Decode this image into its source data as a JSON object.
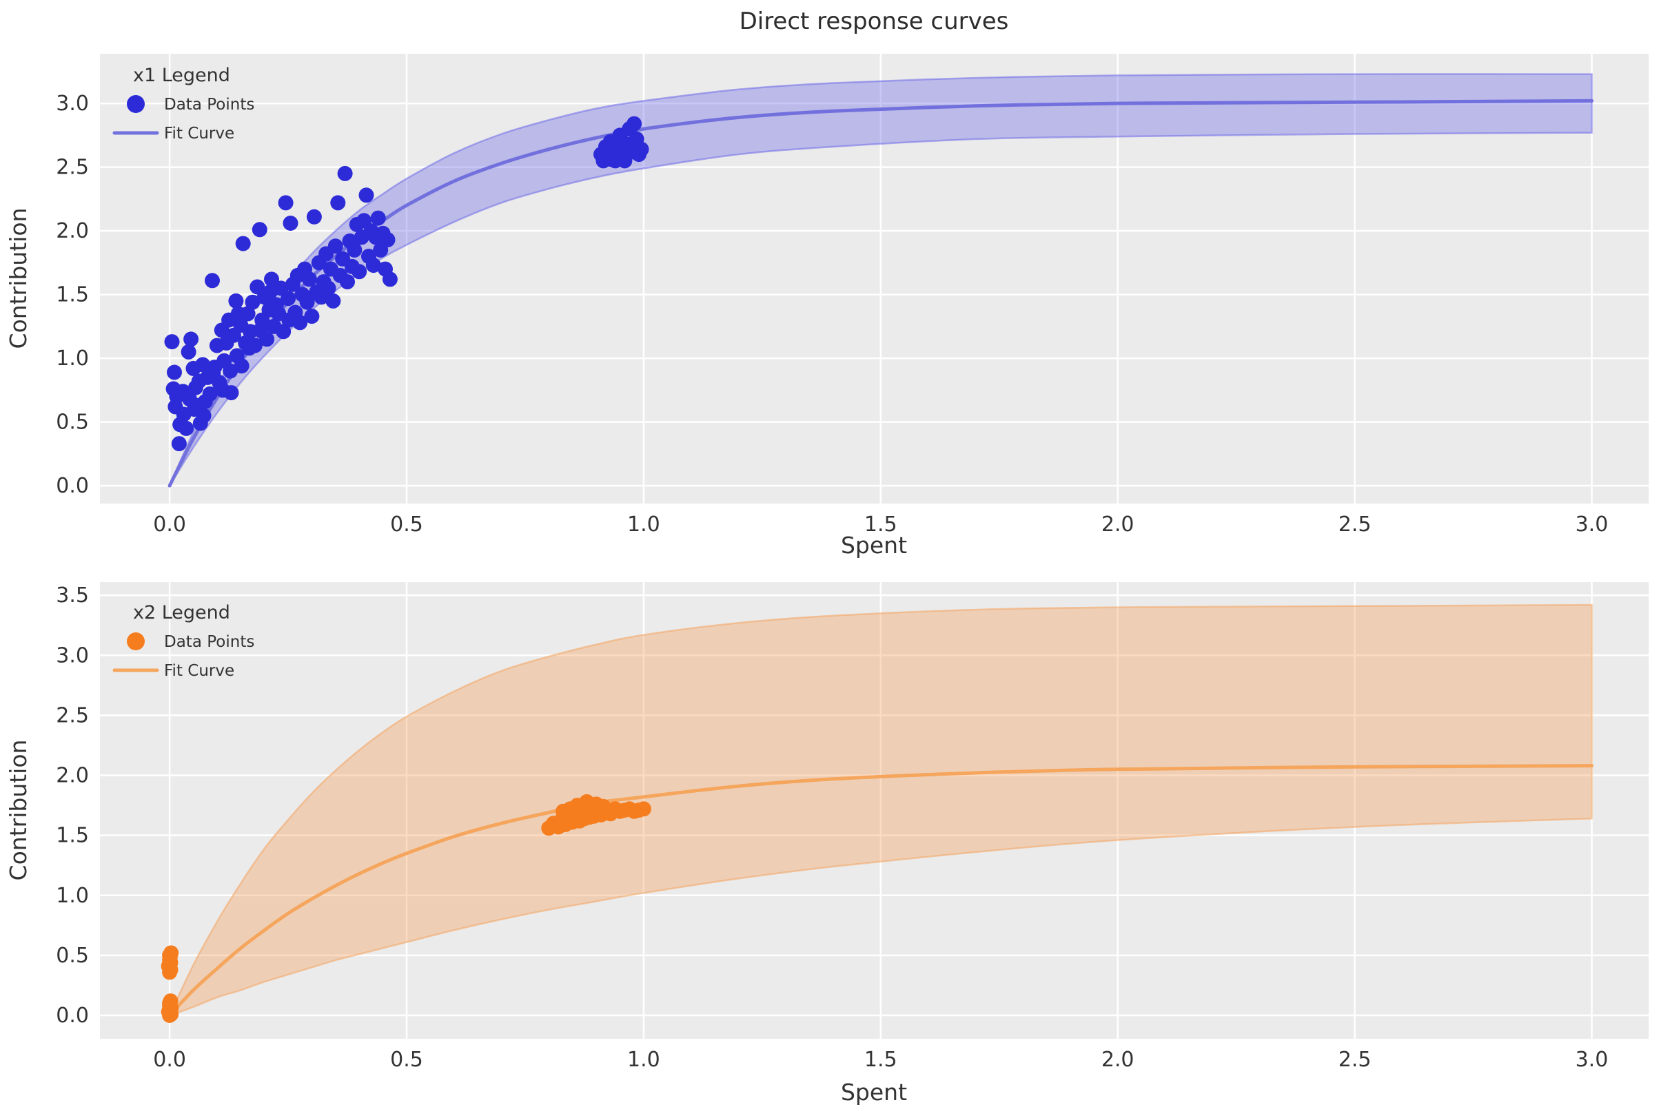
{
  "title": "Direct response curves",
  "colors": {
    "figure_bg": "#ffffff",
    "axes_bg": "#ebebeb",
    "grid": "#ffffff",
    "text": "#333333"
  },
  "chart_data": [
    {
      "type": "scatter",
      "series_name": "x1",
      "xlabel": "Spent",
      "ylabel": "Contribution",
      "legend": {
        "title": "x1 Legend",
        "position": "upper-left",
        "items": [
          {
            "label": "Data Points",
            "marker": "dot"
          },
          {
            "label": "Fit Curve",
            "marker": "line"
          }
        ]
      },
      "grid": true,
      "xlim": [
        -0.147,
        3.12
      ],
      "ylim": [
        -0.14,
        3.39
      ],
      "x_ticks": [
        0,
        0.5,
        1,
        1.5,
        2,
        2.5,
        3
      ],
      "x_tick_labels": [
        "0.0",
        "0.5",
        "1.0",
        "1.5",
        "2.0",
        "2.5",
        "3.0"
      ],
      "y_ticks": [
        0,
        0.5,
        1,
        1.5,
        2,
        2.5,
        3
      ],
      "y_tick_labels": [
        "0.0",
        "0.5",
        "1.0",
        "1.5",
        "2.0",
        "2.5",
        "3.0"
      ],
      "colors": {
        "points": "#2d2bd7",
        "fit": "#7270dd",
        "band": "#6f6ce8",
        "band_opacity": 0.38
      },
      "fit_curve": {
        "x": [
          0,
          0.05,
          0.1,
          0.15,
          0.2,
          0.25,
          0.3,
          0.35,
          0.4,
          0.45,
          0.5,
          0.6,
          0.7,
          0.8,
          0.9,
          1.0,
          1.2,
          1.4,
          1.7,
          2.0,
          2.5,
          3.0
        ],
        "y": [
          0,
          0.37,
          0.69,
          0.97,
          1.22,
          1.44,
          1.64,
          1.8,
          1.95,
          2.08,
          2.2,
          2.39,
          2.53,
          2.64,
          2.73,
          2.8,
          2.89,
          2.94,
          2.98,
          3.0,
          3.01,
          3.02
        ]
      },
      "band": {
        "x": [
          0,
          0.05,
          0.1,
          0.15,
          0.2,
          0.25,
          0.3,
          0.35,
          0.4,
          0.45,
          0.5,
          0.6,
          0.7,
          0.8,
          0.9,
          1.0,
          1.2,
          1.4,
          1.7,
          2.0,
          2.5,
          3.0
        ],
        "upper": [
          0,
          0.42,
          0.78,
          1.09,
          1.37,
          1.61,
          1.82,
          2.0,
          2.16,
          2.29,
          2.41,
          2.61,
          2.76,
          2.87,
          2.96,
          3.02,
          3.11,
          3.16,
          3.2,
          3.22,
          3.23,
          3.23
        ],
        "lower": [
          0,
          0.3,
          0.57,
          0.81,
          1.02,
          1.21,
          1.38,
          1.53,
          1.67,
          1.79,
          1.89,
          2.07,
          2.22,
          2.33,
          2.42,
          2.49,
          2.6,
          2.66,
          2.72,
          2.74,
          2.76,
          2.77
        ]
      },
      "points": [
        [
          0.005,
          1.13
        ],
        [
          0.01,
          0.89
        ],
        [
          0.008,
          0.76
        ],
        [
          0.012,
          0.62
        ],
        [
          0.015,
          0.7
        ],
        [
          0.02,
          0.33
        ],
        [
          0.022,
          0.48
        ],
        [
          0.028,
          0.74
        ],
        [
          0.03,
          0.56
        ],
        [
          0.035,
          0.45
        ],
        [
          0.04,
          1.05
        ],
        [
          0.042,
          0.68
        ],
        [
          0.045,
          1.15
        ],
        [
          0.05,
          0.92
        ],
        [
          0.052,
          0.6
        ],
        [
          0.055,
          0.77
        ],
        [
          0.06,
          0.63
        ],
        [
          0.062,
          0.82
        ],
        [
          0.065,
          0.49
        ],
        [
          0.07,
          0.95
        ],
        [
          0.072,
          0.55
        ],
        [
          0.075,
          0.66
        ],
        [
          0.08,
          0.85
        ],
        [
          0.085,
          0.72
        ],
        [
          0.09,
          1.61
        ],
        [
          0.092,
          0.88
        ],
        [
          0.095,
          0.93
        ],
        [
          0.1,
          1.1
        ],
        [
          0.105,
          0.81
        ],
        [
          0.11,
          1.22
        ],
        [
          0.112,
          0.75
        ],
        [
          0.115,
          0.98
        ],
        [
          0.12,
          1.12
        ],
        [
          0.125,
          1.3
        ],
        [
          0.128,
          0.9
        ],
        [
          0.13,
          0.73
        ],
        [
          0.135,
          1.18
        ],
        [
          0.14,
          1.45
        ],
        [
          0.142,
          1.02
        ],
        [
          0.145,
          1.35
        ],
        [
          0.15,
          1.26
        ],
        [
          0.152,
          0.94
        ],
        [
          0.155,
          1.9
        ],
        [
          0.16,
          1.12
        ],
        [
          0.165,
          1.35
        ],
        [
          0.168,
          1.08
        ],
        [
          0.17,
          1.21
        ],
        [
          0.175,
          1.44
        ],
        [
          0.18,
          1.1
        ],
        [
          0.185,
          1.56
        ],
        [
          0.19,
          2.01
        ],
        [
          0.192,
          1.22
        ],
        [
          0.195,
          1.3
        ],
        [
          0.2,
          1.48
        ],
        [
          0.205,
          1.15
        ],
        [
          0.21,
          1.38
        ],
        [
          0.212,
          1.52
        ],
        [
          0.215,
          1.62
        ],
        [
          0.22,
          1.25
        ],
        [
          0.225,
          1.42
        ],
        [
          0.23,
          1.35
        ],
        [
          0.235,
          1.55
        ],
        [
          0.24,
          1.21
        ],
        [
          0.245,
          2.22
        ],
        [
          0.25,
          1.47
        ],
        [
          0.252,
          1.3
        ],
        [
          0.255,
          2.06
        ],
        [
          0.26,
          1.58
        ],
        [
          0.265,
          1.36
        ],
        [
          0.27,
          1.65
        ],
        [
          0.275,
          1.28
        ],
        [
          0.28,
          1.5
        ],
        [
          0.285,
          1.7
        ],
        [
          0.29,
          1.44
        ],
        [
          0.295,
          1.62
        ],
        [
          0.3,
          1.33
        ],
        [
          0.305,
          2.11
        ],
        [
          0.31,
          1.52
        ],
        [
          0.315,
          1.75
        ],
        [
          0.32,
          1.48
        ],
        [
          0.325,
          1.6
        ],
        [
          0.33,
          1.82
        ],
        [
          0.335,
          1.55
        ],
        [
          0.34,
          1.7
        ],
        [
          0.345,
          1.45
        ],
        [
          0.35,
          1.88
        ],
        [
          0.355,
          2.22
        ],
        [
          0.36,
          1.65
        ],
        [
          0.365,
          1.78
        ],
        [
          0.37,
          2.45
        ],
        [
          0.375,
          1.6
        ],
        [
          0.38,
          1.92
        ],
        [
          0.385,
          1.72
        ],
        [
          0.39,
          1.85
        ],
        [
          0.395,
          2.05
        ],
        [
          0.4,
          1.68
        ],
        [
          0.405,
          1.95
        ],
        [
          0.41,
          2.08
        ],
        [
          0.415,
          2.28
        ],
        [
          0.42,
          1.8
        ],
        [
          0.425,
          2.0
        ],
        [
          0.43,
          1.73
        ],
        [
          0.435,
          1.95
        ],
        [
          0.44,
          2.1
        ],
        [
          0.445,
          1.85
        ],
        [
          0.45,
          1.98
        ],
        [
          0.455,
          1.7
        ],
        [
          0.46,
          1.93
        ],
        [
          0.465,
          1.62
        ],
        [
          0.91,
          2.6
        ],
        [
          0.915,
          2.55
        ],
        [
          0.92,
          2.66
        ],
        [
          0.925,
          2.58
        ],
        [
          0.93,
          2.7
        ],
        [
          0.932,
          2.56
        ],
        [
          0.935,
          2.62
        ],
        [
          0.94,
          2.55
        ],
        [
          0.945,
          2.66
        ],
        [
          0.948,
          2.58
        ],
        [
          0.95,
          2.75
        ],
        [
          0.955,
          2.62
        ],
        [
          0.96,
          2.55
        ],
        [
          0.965,
          2.68
        ],
        [
          0.97,
          2.8
        ],
        [
          0.975,
          2.62
        ],
        [
          0.98,
          2.84
        ],
        [
          0.985,
          2.72
        ],
        [
          0.99,
          2.6
        ],
        [
          0.995,
          2.64
        ]
      ]
    },
    {
      "type": "scatter",
      "series_name": "x2",
      "xlabel": "Spent",
      "ylabel": "Contribution",
      "legend": {
        "title": "x2 Legend",
        "position": "upper-left",
        "items": [
          {
            "label": "Data Points",
            "marker": "dot"
          },
          {
            "label": "Fit Curve",
            "marker": "line"
          }
        ]
      },
      "grid": true,
      "xlim": [
        -0.147,
        3.12
      ],
      "ylim": [
        -0.195,
        3.61
      ],
      "x_ticks": [
        0,
        0.5,
        1,
        1.5,
        2,
        2.5,
        3
      ],
      "x_tick_labels": [
        "0.0",
        "0.5",
        "1.0",
        "1.5",
        "2.0",
        "2.5",
        "3.0"
      ],
      "y_ticks": [
        0,
        0.5,
        1,
        1.5,
        2,
        2.5,
        3,
        3.5
      ],
      "y_tick_labels": [
        "0.0",
        "0.5",
        "1.0",
        "1.5",
        "2.0",
        "2.5",
        "3.0",
        "3.5"
      ],
      "colors": {
        "points": "#f57d1e",
        "fit": "#f5a55c",
        "band": "#f4a460",
        "band_opacity": 0.38
      },
      "fit_curve": {
        "x": [
          0,
          0.05,
          0.1,
          0.15,
          0.2,
          0.25,
          0.3,
          0.35,
          0.4,
          0.45,
          0.5,
          0.6,
          0.7,
          0.8,
          0.9,
          1.0,
          1.2,
          1.4,
          1.7,
          2.0,
          2.5,
          3.0
        ],
        "y": [
          0,
          0.21,
          0.39,
          0.56,
          0.71,
          0.85,
          0.97,
          1.08,
          1.18,
          1.27,
          1.35,
          1.49,
          1.6,
          1.69,
          1.77,
          1.82,
          1.91,
          1.97,
          2.02,
          2.05,
          2.07,
          2.08
        ]
      },
      "band": {
        "x": [
          0,
          0.05,
          0.1,
          0.15,
          0.2,
          0.25,
          0.3,
          0.35,
          0.4,
          0.45,
          0.5,
          0.6,
          0.7,
          0.8,
          0.9,
          1.0,
          1.2,
          1.4,
          1.7,
          2.0,
          2.5,
          3.0
        ],
        "upper": [
          0,
          0.42,
          0.78,
          1.1,
          1.39,
          1.63,
          1.85,
          2.04,
          2.21,
          2.36,
          2.49,
          2.7,
          2.87,
          2.99,
          3.09,
          3.17,
          3.27,
          3.33,
          3.38,
          3.4,
          3.41,
          3.42
        ],
        "lower": [
          0,
          0.07,
          0.15,
          0.21,
          0.28,
          0.34,
          0.4,
          0.46,
          0.51,
          0.56,
          0.61,
          0.71,
          0.8,
          0.88,
          0.95,
          1.02,
          1.14,
          1.24,
          1.36,
          1.46,
          1.57,
          1.64
        ]
      },
      "points": [
        [
          0.0,
          0.0
        ],
        [
          0.0,
          0.02
        ],
        [
          0.0,
          0.05
        ],
        [
          0.0,
          0.08
        ],
        [
          0.0,
          0.1
        ],
        [
          0.003,
          0.01
        ],
        [
          0.003,
          0.06
        ],
        [
          -0.002,
          0.03
        ],
        [
          0.002,
          0.12
        ],
        [
          0.001,
          0.04
        ],
        [
          0.0,
          0.36
        ],
        [
          0.0,
          0.4
        ],
        [
          0.0,
          0.43
        ],
        [
          0.0,
          0.46
        ],
        [
          0.0,
          0.5
        ],
        [
          0.002,
          0.38
        ],
        [
          0.002,
          0.44
        ],
        [
          -0.002,
          0.41
        ],
        [
          0.001,
          0.48
        ],
        [
          0.003,
          0.52
        ],
        [
          0.8,
          1.56
        ],
        [
          0.81,
          1.6
        ],
        [
          0.82,
          1.57
        ],
        [
          0.825,
          1.62
        ],
        [
          0.83,
          1.7
        ],
        [
          0.835,
          1.59
        ],
        [
          0.84,
          1.63
        ],
        [
          0.845,
          1.72
        ],
        [
          0.85,
          1.61
        ],
        [
          0.855,
          1.64
        ],
        [
          0.86,
          1.75
        ],
        [
          0.865,
          1.62
        ],
        [
          0.87,
          1.66
        ],
        [
          0.875,
          1.64
        ],
        [
          0.88,
          1.78
        ],
        [
          0.885,
          1.65
        ],
        [
          0.89,
          1.68
        ],
        [
          0.895,
          1.66
        ],
        [
          0.9,
          1.76
        ],
        [
          0.905,
          1.69
        ],
        [
          0.91,
          1.67
        ],
        [
          0.915,
          1.74
        ],
        [
          0.92,
          1.7
        ],
        [
          0.93,
          1.68
        ],
        [
          0.94,
          1.72
        ],
        [
          0.95,
          1.7
        ],
        [
          0.96,
          1.71
        ],
        [
          0.97,
          1.72
        ],
        [
          0.98,
          1.7
        ],
        [
          0.99,
          1.71
        ],
        [
          1.0,
          1.72
        ]
      ]
    }
  ]
}
